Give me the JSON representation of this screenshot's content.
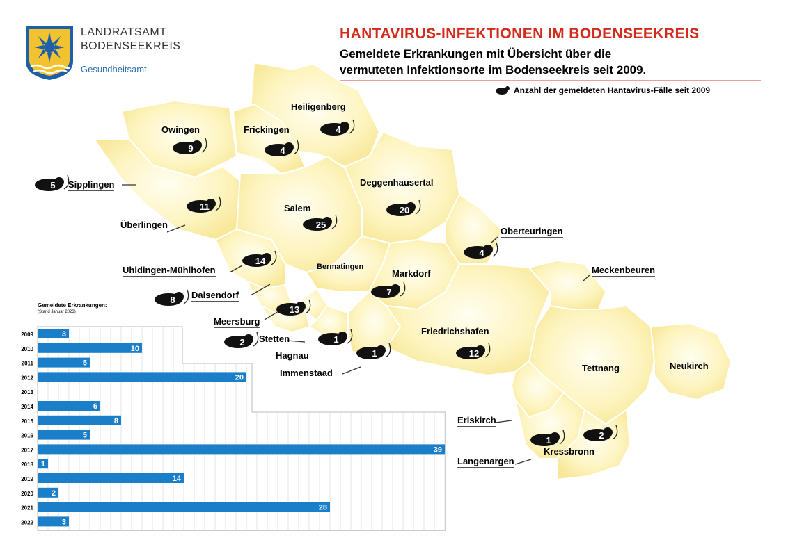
{
  "logo": {
    "line1": "LANDRATSAMT",
    "line2": "BODENSEEKREIS",
    "line3": "Gesundheitsamt"
  },
  "header": {
    "title": "HANTAVIRUS-INFEKTIONEN IM BODENSEEKREIS",
    "subtitle_line1": "Gemeldete Erkrankungen mit Übersicht über die",
    "subtitle_line2": "vermuteten Infektionsorte im Bodenseekreis seit 2009."
  },
  "legend": {
    "label": "Anzahl der gemeldeten Hantavirus-Fälle seit 2009",
    "icon": "mouse-icon"
  },
  "colors": {
    "region_fill": "#fcf3b8",
    "region_glow": "#fffde8",
    "border": "#ffffff",
    "title_red": "#d42a1c",
    "bar_blue": "#1a7fc8",
    "badge": "#111111"
  },
  "places": [
    {
      "name": "Heiligenberg",
      "count": "4"
    },
    {
      "name": "Owingen",
      "count": "9"
    },
    {
      "name": "Frickingen",
      "count": "4"
    },
    {
      "name": "Sipplingen",
      "count": "5"
    },
    {
      "name": "Deggenhausertal",
      "count": "20"
    },
    {
      "name": "Überlingen",
      "count": "11"
    },
    {
      "name": "Salem",
      "count": "25"
    },
    {
      "name": "Oberteuringen",
      "count": "4"
    },
    {
      "name": "Uhldingen-Mühlhofen",
      "count": "14"
    },
    {
      "name": "Bermatingen",
      "count": ""
    },
    {
      "name": "Markdorf",
      "count": "7"
    },
    {
      "name": "Meckenbeuren",
      "count": ""
    },
    {
      "name": "Daisendorf",
      "count": "8"
    },
    {
      "name": "Meersburg",
      "count": "13"
    },
    {
      "name": "Friedrichshafen",
      "count": "12"
    },
    {
      "name": "Stetten",
      "count": "2"
    },
    {
      "name": "Hagnau",
      "count": "1"
    },
    {
      "name": "Immenstaad",
      "count": "1"
    },
    {
      "name": "Tettnang",
      "count": ""
    },
    {
      "name": "Neukirch",
      "count": ""
    },
    {
      "name": "Eriskirch",
      "count": "1"
    },
    {
      "name": "Kressbronn",
      "count": "2"
    },
    {
      "name": "Langenargen",
      "count": ""
    }
  ],
  "chart_data": {
    "type": "bar",
    "orientation": "horizontal",
    "title": "Gemeldete Erkrankungen:",
    "subtitle": "(Stand Januar 2023)",
    "categories": [
      "2009",
      "2010",
      "2011",
      "2012",
      "2013",
      "2014",
      "2015",
      "2016",
      "2017",
      "2018",
      "2019",
      "2020",
      "2021",
      "2022"
    ],
    "values": [
      3,
      10,
      5,
      20,
      0,
      6,
      8,
      5,
      39,
      1,
      14,
      2,
      28,
      3
    ],
    "value_labels": [
      "3",
      "10",
      "5",
      "20",
      "",
      "6",
      "8",
      "5",
      "39",
      "1",
      "14",
      "2",
      "28",
      "3"
    ],
    "xlim": [
      0,
      39
    ],
    "grid": true,
    "color": "#1a7fc8"
  }
}
